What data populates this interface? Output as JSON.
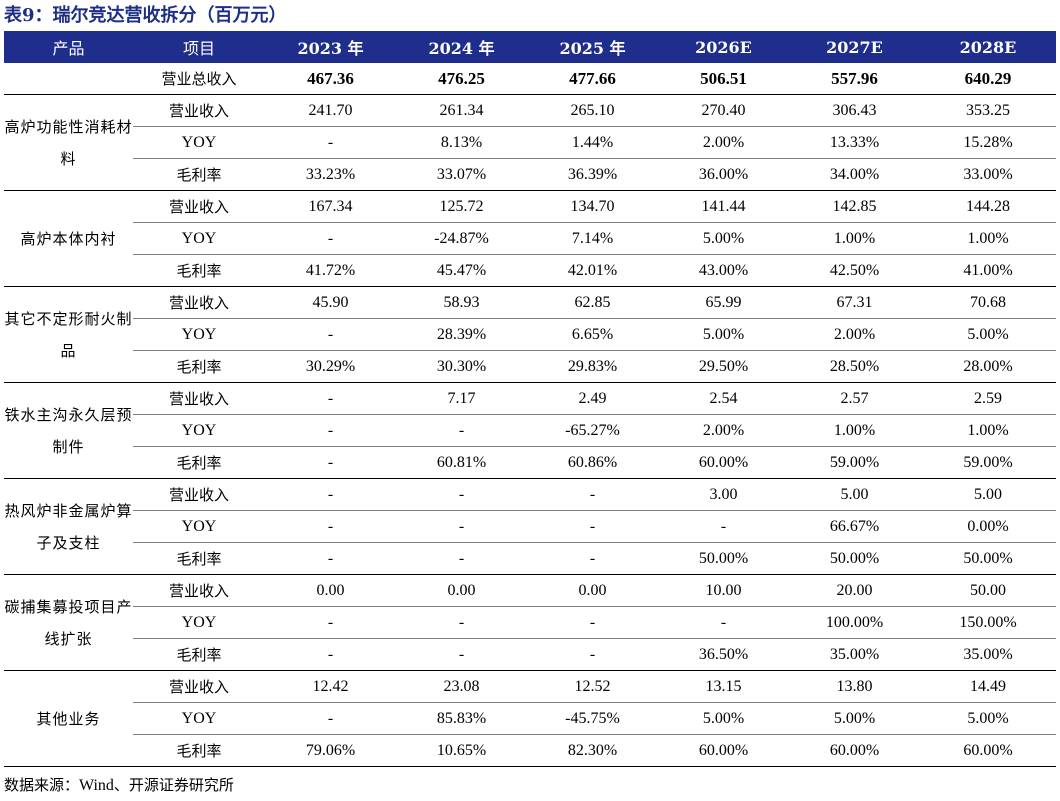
{
  "title": "表9：瑞尔竞达营收拆分（百万元）",
  "header": [
    "产品",
    "项目",
    "2023 年",
    "2024 年",
    "2025 年",
    "2026E",
    "2027E",
    "2028E"
  ],
  "total": {
    "label": "营业总收入",
    "values": [
      "467.36",
      "476.25",
      "477.66",
      "506.51",
      "557.96",
      "640.29"
    ]
  },
  "groups": [
    {
      "product": "高炉功能性消耗材料",
      "rows": [
        {
          "metric": "营业收入",
          "values": [
            "241.70",
            "261.34",
            "265.10",
            "270.40",
            "306.43",
            "353.25"
          ]
        },
        {
          "metric": "YOY",
          "values": [
            "-",
            "8.13%",
            "1.44%",
            "2.00%",
            "13.33%",
            "15.28%"
          ]
        },
        {
          "metric": "毛利率",
          "values": [
            "33.23%",
            "33.07%",
            "36.39%",
            "36.00%",
            "34.00%",
            "33.00%"
          ]
        }
      ]
    },
    {
      "product": "高炉本体内衬",
      "rows": [
        {
          "metric": "营业收入",
          "values": [
            "167.34",
            "125.72",
            "134.70",
            "141.44",
            "142.85",
            "144.28"
          ]
        },
        {
          "metric": "YOY",
          "values": [
            "-",
            "-24.87%",
            "7.14%",
            "5.00%",
            "1.00%",
            "1.00%"
          ]
        },
        {
          "metric": "毛利率",
          "values": [
            "41.72%",
            "45.47%",
            "42.01%",
            "43.00%",
            "42.50%",
            "41.00%"
          ]
        }
      ]
    },
    {
      "product": "其它不定形耐火制品",
      "rows": [
        {
          "metric": "营业收入",
          "values": [
            "45.90",
            "58.93",
            "62.85",
            "65.99",
            "67.31",
            "70.68"
          ]
        },
        {
          "metric": "YOY",
          "values": [
            "-",
            "28.39%",
            "6.65%",
            "5.00%",
            "2.00%",
            "5.00%"
          ]
        },
        {
          "metric": "毛利率",
          "values": [
            "30.29%",
            "30.30%",
            "29.83%",
            "29.50%",
            "28.50%",
            "28.00%"
          ]
        }
      ]
    },
    {
      "product": "铁水主沟永久层预制件",
      "rows": [
        {
          "metric": "营业收入",
          "values": [
            "-",
            "7.17",
            "2.49",
            "2.54",
            "2.57",
            "2.59"
          ]
        },
        {
          "metric": "YOY",
          "values": [
            "-",
            "-",
            "-65.27%",
            "2.00%",
            "1.00%",
            "1.00%"
          ]
        },
        {
          "metric": "毛利率",
          "values": [
            "-",
            "60.81%",
            "60.86%",
            "60.00%",
            "59.00%",
            "59.00%"
          ]
        }
      ]
    },
    {
      "product": "热风炉非金属炉算子及支柱",
      "rows": [
        {
          "metric": "营业收入",
          "values": [
            "-",
            "-",
            "-",
            "3.00",
            "5.00",
            "5.00"
          ]
        },
        {
          "metric": "YOY",
          "values": [
            "-",
            "-",
            "-",
            "-",
            "66.67%",
            "0.00%"
          ]
        },
        {
          "metric": "毛利率",
          "values": [
            "-",
            "-",
            "-",
            "50.00%",
            "50.00%",
            "50.00%"
          ]
        }
      ]
    },
    {
      "product": "碳捕集募投项目产线扩张",
      "rows": [
        {
          "metric": "营业收入",
          "values": [
            "0.00",
            "0.00",
            "0.00",
            "10.00",
            "20.00",
            "50.00"
          ]
        },
        {
          "metric": "YOY",
          "values": [
            "-",
            "-",
            "-",
            "-",
            "100.00%",
            "150.00%"
          ]
        },
        {
          "metric": "毛利率",
          "values": [
            "-",
            "-",
            "-",
            "36.50%",
            "35.00%",
            "35.00%"
          ]
        }
      ]
    },
    {
      "product": "其他业务",
      "rows": [
        {
          "metric": "营业收入",
          "values": [
            "12.42",
            "23.08",
            "12.52",
            "13.15",
            "13.80",
            "14.49"
          ]
        },
        {
          "metric": "YOY",
          "values": [
            "-",
            "85.83%",
            "-45.75%",
            "5.00%",
            "5.00%",
            "5.00%"
          ]
        },
        {
          "metric": "毛利率",
          "values": [
            "79.06%",
            "10.65%",
            "82.30%",
            "60.00%",
            "60.00%",
            "60.00%"
          ]
        }
      ]
    }
  ],
  "source": {
    "prefix": "数据来源：",
    "en": "Wind",
    "suffix": "、开源证券研究所"
  }
}
